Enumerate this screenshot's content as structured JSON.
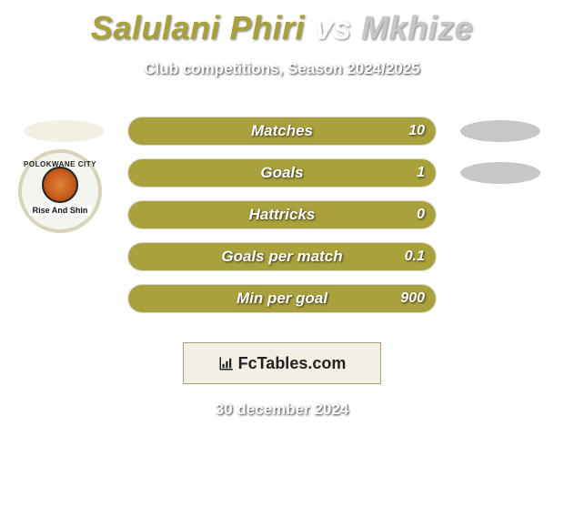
{
  "title": {
    "p1_name": "Salulani Phiri",
    "vs": "vs",
    "p2_name": "Mkhize",
    "p1_color": "#a8a13a",
    "vs_color": "#ffffff",
    "p2_color": "#c7c7c7",
    "fontsize": 36
  },
  "subtitle": "Club competitions, Season 2024/2025",
  "colors": {
    "p1_bar": "#a8a13c",
    "p2_bar": "#c7c7c7",
    "p1_ellipse": "#f2f0e2",
    "p2_ellipse": "#c7c7c7",
    "track_bg": "#ffffff",
    "label_text": "#ffffff",
    "background": "#ffffff"
  },
  "bar_style": {
    "height": 32,
    "radius": 16,
    "label_fontsize": 17,
    "value_fontsize": 16
  },
  "bars": [
    {
      "label": "Matches",
      "p1_pct": 100,
      "p2_pct": 0,
      "value_right": "10"
    },
    {
      "label": "Goals",
      "p1_pct": 100,
      "p2_pct": 0,
      "value_right": "1"
    },
    {
      "label": "Hattricks",
      "p1_pct": 100,
      "p2_pct": 0,
      "value_right": "0"
    },
    {
      "label": "Goals per match",
      "p1_pct": 100,
      "p2_pct": 0,
      "value_right": "0.1"
    },
    {
      "label": "Min per goal",
      "p1_pct": 100,
      "p2_pct": 0,
      "value_right": "900"
    }
  ],
  "left_badge": {
    "arc_text_top": "POLOKWANE CITY",
    "banner_text": "Rise And Shin"
  },
  "credit": {
    "text": "FcTables.com",
    "box_bg": "#f3efe4",
    "box_border": "#a79f75"
  },
  "date": "30 december 2024"
}
